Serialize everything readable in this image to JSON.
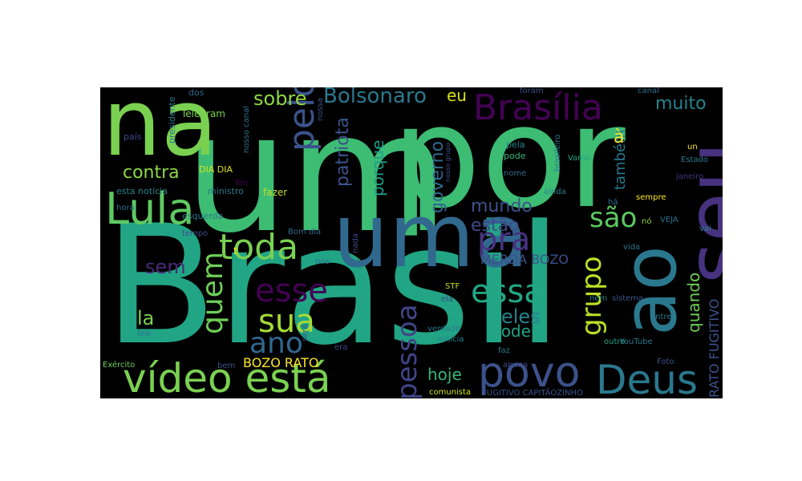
{
  "words": {
    "brasil": {
      "text": "Brasil",
      "color": "#21a585"
    },
    "um": {
      "text": "um",
      "color": "#3dbc74"
    },
    "por": {
      "text": "por",
      "color": "#3dbc74"
    },
    "na": {
      "text": "na",
      "color": "#7ad151"
    },
    "uma": {
      "text": "uma",
      "color": "#31688e"
    },
    "seu": {
      "text": "seu",
      "color": "#46327e"
    },
    "ao": {
      "text": "ao",
      "color": "#2a788e"
    },
    "video_esta": {
      "text": "vídeo está",
      "color": "#7ad151"
    },
    "lula": {
      "text": "Lula",
      "color": "#5ec962"
    },
    "povo": {
      "text": "povo",
      "color": "#3b528b"
    },
    "deus": {
      "text": "Deus",
      "color": "#2a788e"
    },
    "brasilia": {
      "text": "Brasília",
      "color": "#440154"
    },
    "pelo": {
      "text": "pelo",
      "color": "#3b528b"
    },
    "toda": {
      "text": "toda",
      "color": "#7ad151"
    },
    "pra": {
      "text": "pra",
      "color": "#46327e"
    },
    "essa": {
      "text": "essa",
      "color": "#22a884"
    },
    "sua": {
      "text": "sua",
      "color": "#a5db36"
    },
    "esse": {
      "text": "esse",
      "color": "#440154"
    },
    "ano": {
      "text": "ano",
      "color": "#31688e"
    },
    "quem": {
      "text": "quem",
      "color": "#6ece58"
    },
    "pessoa": {
      "text": "pessoa",
      "color": "#414487"
    },
    "grupo": {
      "text": "grupo",
      "color": "#bddf26"
    },
    "sao": {
      "text": "são",
      "color": "#5ec962"
    },
    "bolsonaro": {
      "text": "Bolsonaro",
      "color": "#2a788e"
    },
    "sobre": {
      "text": "sobre",
      "color": "#8fd744"
    },
    "eu": {
      "text": "eu",
      "color": "#d8e219"
    },
    "muito": {
      "text": "muito",
      "color": "#26828e"
    },
    "contra": {
      "text": "contra",
      "color": "#8fd744"
    },
    "patriota": {
      "text": "patriota",
      "color": "#3b528b"
    },
    "porque": {
      "text": "porque",
      "color": "#1f9e89"
    },
    "governo": {
      "text": "governo",
      "color": "#31688e"
    },
    "mundo": {
      "text": "mundo",
      "color": "#3b528b"
    },
    "estao": {
      "text": "estão",
      "color": "#3e4989"
    },
    "tambem": {
      "text": "também",
      "color": "#2a788e"
    },
    "a_grave": {
      "text": "à",
      "color": "#fde725"
    },
    "sem": {
      "text": "sem",
      "color": "#482878"
    },
    "la": {
      "text": "la",
      "color": "#7ad151"
    },
    "merda_bozo": {
      "text": "MERDA BOZO",
      "color": "#3b528b"
    },
    "eles": {
      "text": "eles",
      "color": "#26828e"
    },
    "poder": {
      "text": "poder",
      "color": "#20a386"
    },
    "hoje": {
      "text": "hoje",
      "color": "#35b779"
    },
    "bozo_rato": {
      "text": "BOZO RATO",
      "color": "#fde725"
    },
    "quando": {
      "text": "quando",
      "color": "#6ece58"
    },
    "rato_fugitivo": {
      "text": "RATO FUGITIVO",
      "color": "#3b528b"
    },
    "telegram": {
      "text": "Telegram",
      "color": "#7ad151"
    },
    "presidente": {
      "text": "presidente",
      "color": "#2a788e"
    },
    "nosso_canal": {
      "text": "nosso canal",
      "color": "#2c728e"
    },
    "nossa": {
      "text": "nossa",
      "color": "#3b528b"
    },
    "dos": {
      "text": "dos",
      "color": "#31688e"
    },
    "pais": {
      "text": "país",
      "color": "#3e4989"
    },
    "dia_dia": {
      "text": "DIA DIA",
      "color": "#d8e219"
    },
    "esta_noticia": {
      "text": "esta notícia",
      "color": "#26828e"
    },
    "ministro": {
      "text": "ministro",
      "color": "#2a788e"
    },
    "fim": {
      "text": "fim",
      "color": "#440154"
    },
    "fazer": {
      "text": "fazer",
      "color": "#c2df23"
    },
    "hora": {
      "text": "hora",
      "color": "#2c728e"
    },
    "esquerda": {
      "text": "esquerda",
      "color": "#2a788e"
    },
    "tempo": {
      "text": "tempo",
      "color": "#3e4989"
    },
    "bom_dia": {
      "text": "Bom dia",
      "color": "#31688e"
    },
    "t": {
      "text": "t",
      "color": "#fde725"
    },
    "nada": {
      "text": "nada",
      "color": "#3e4989"
    },
    "nos": {
      "text": "nos",
      "color": "#31688e"
    },
    "nosso_grupo": {
      "text": "nosso grupo",
      "color": "#3b528b"
    },
    "foram": {
      "text": "foram",
      "color": "#3b528b"
    },
    "pela": {
      "text": "pela",
      "color": "#26828e"
    },
    "pode": {
      "text": "pode",
      "color": "#35b779"
    },
    "nome": {
      "text": "nome",
      "color": "#31688e"
    },
    "ainda": {
      "text": "ainda",
      "color": "#26828e"
    },
    "brasileiro": {
      "text": "brasileiro",
      "color": "#2a788e"
    },
    "vamo": {
      "text": "Vamo",
      "color": "#20a386"
    },
    "canal": {
      "text": "canal",
      "color": "#2c728e"
    },
    "un": {
      "text": "un",
      "color": "#fde725"
    },
    "estado": {
      "text": "Estado",
      "color": "#2a788e"
    },
    "janeiro": {
      "text": "janeiro",
      "color": "#46327e"
    },
    "sempre": {
      "text": "sempre",
      "color": "#fde725"
    },
    "ha": {
      "text": "há",
      "color": "#2c728e"
    },
    "no": {
      "text": "nó",
      "color": "#8fd744"
    },
    "veja": {
      "text": "VEJA",
      "color": "#2c728e"
    },
    "vai": {
      "text": "vai",
      "color": "#26828e"
    },
    "vida": {
      "text": "vida",
      "color": "#2a788e"
    },
    "stf": {
      "text": "STF",
      "color": "#c2df23"
    },
    "ela": {
      "text": "ela",
      "color": "#3e4989"
    },
    "verdade": {
      "text": "verdade",
      "color": "#2a788e"
    },
    "noticia": {
      "text": "notícia",
      "color": "#26828e"
    },
    "faz": {
      "text": "faz",
      "color": "#2a788e"
    },
    "apena": {
      "text": "apena",
      "color": "#3e4989"
    },
    "outro": {
      "text": "outro",
      "color": "#20a386"
    },
    "nem": {
      "text": "nem",
      "color": "#26828e"
    },
    "sistema": {
      "text": "sistema",
      "color": "#3b528b"
    },
    "youtube": {
      "text": "YouTube",
      "color": "#2a788e"
    },
    "entre": {
      "text": "entre",
      "color": "#2a788e"
    },
    "foto": {
      "text": "Foto",
      "color": "#3b528b"
    },
    "link": {
      "text": "link",
      "color": "#2c728e"
    },
    "exercito": {
      "text": "Exército",
      "color": "#6ece58"
    },
    "bem": {
      "text": "bem",
      "color": "#3b528b"
    },
    "era": {
      "text": "era",
      "color": "#3e4989"
    },
    "sera": {
      "text": "será",
      "color": "#3b528b"
    },
    "comunista": {
      "text": "comunista",
      "color": "#d8e219"
    },
    "fugitivo_capitaozinho": {
      "text": "FUGITIVO CAPITÃOZINHO",
      "color": "#3b528b"
    }
  }
}
